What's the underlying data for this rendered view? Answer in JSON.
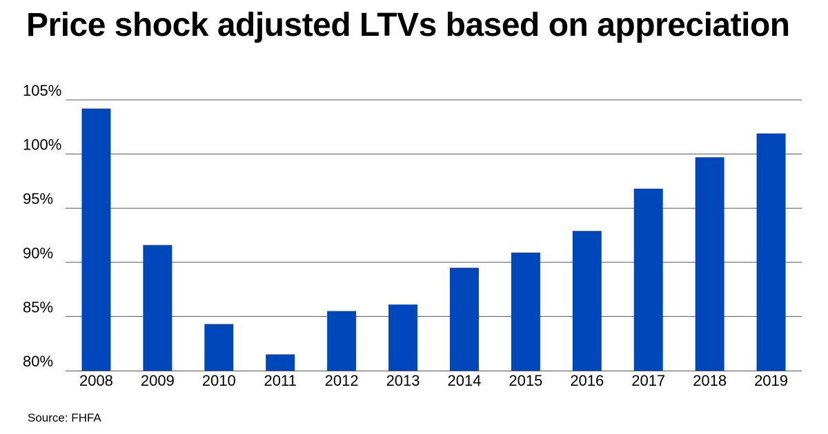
{
  "chart_data": {
    "type": "bar",
    "title": "Price shock adjusted LTVs based on appreciation",
    "xlabel": "",
    "ylabel": "",
    "categories": [
      "2008",
      "2009",
      "2010",
      "2011",
      "2012",
      "2013",
      "2014",
      "2015",
      "2016",
      "2017",
      "2018",
      "2019"
    ],
    "values": [
      104.2,
      91.6,
      84.3,
      81.5,
      85.5,
      86.1,
      89.5,
      90.9,
      92.9,
      96.8,
      99.7,
      101.9
    ],
    "ylim": [
      80,
      105
    ],
    "y_ticks": [
      80,
      85,
      90,
      95,
      100,
      105
    ],
    "y_tick_labels": [
      "80%",
      "85%",
      "90%",
      "95%",
      "100%",
      "105%"
    ],
    "grid": true,
    "bar_color": "#0047BB",
    "grid_color": "#555555",
    "source": "Source: FHFA"
  }
}
